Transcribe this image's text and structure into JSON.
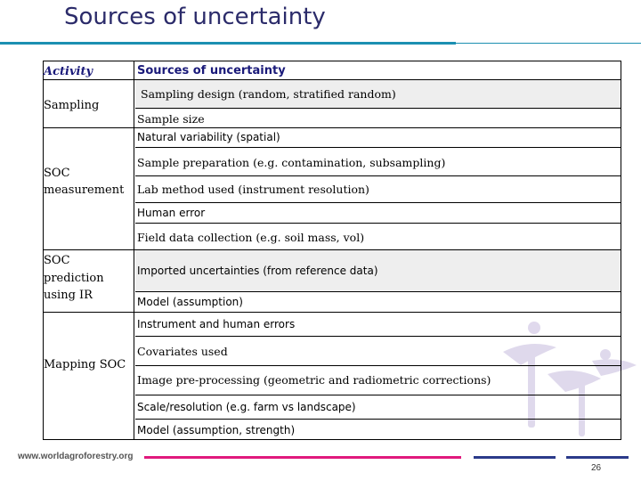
{
  "title": "Sources of uncertainty",
  "table": {
    "header": {
      "activity": "Activity",
      "sources": "Sources of uncertainty"
    },
    "activities": {
      "sampling": "Sampling",
      "soc_measurement_1": "SOC",
      "soc_measurement_2": "measurement",
      "soc_prediction_1": "SOC",
      "soc_prediction_2": "prediction",
      "soc_prediction_3": "using IR",
      "mapping": "Mapping SOC"
    },
    "sources": [
      "Sampling design (random, stratified  random)",
      "Sample size",
      "Natural variability (spatial)",
      "Sample preparation (e.g. contamination, subsampling)",
      "Lab method used (instrument resolution)",
      "Human error",
      "Field data collection (e.g. soil mass, vol)",
      "Imported uncertainties  (from reference data)",
      "Model (assumption)",
      "Instrument and human errors",
      "Covariates used",
      "Image pre-processing (geometric and radiometric corrections)",
      "Scale/resolution (e.g. farm vs landscape)",
      "Model (assumption, strength)"
    ]
  },
  "footer": {
    "url": "www.worldagroforestry.org",
    "page_number": "26"
  },
  "colors": {
    "title": "#2b2b6a",
    "rule": "#1b8fb1",
    "pink": "#e0197d",
    "navy": "#2b3a8a"
  }
}
